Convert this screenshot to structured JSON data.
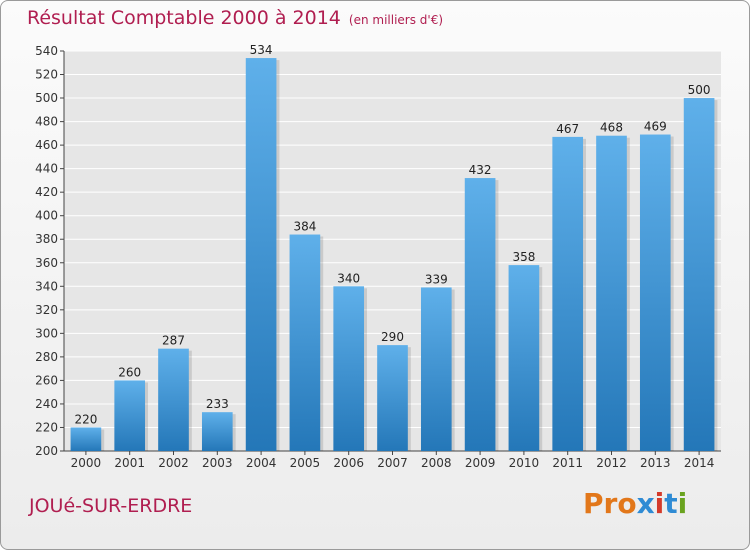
{
  "header": {
    "title": "Résultat Comptable 2000 à 2014",
    "unit": "(en milliers d'€)"
  },
  "footer": {
    "city": "JOUé-SUR-ERDRE",
    "logo_text": "Proxiti",
    "logo_colors": [
      "#e2771a",
      "#e2771a",
      "#e2771a",
      "#2f8bd4",
      "#d43a2a",
      "#2f8bd4",
      "#6aa31f"
    ]
  },
  "colors": {
    "title": "#b01e50",
    "bar_light": "#5fb0ea",
    "bar_dark": "#2477b8",
    "grid": "#ffffff",
    "background_top": "#fbfbfb",
    "background_bottom": "#ececec"
  },
  "chart_data": {
    "type": "bar",
    "title": "Résultat Comptable 2000 à 2014",
    "subtitle": "(en milliers d'€)",
    "xlabel": "",
    "ylabel": "",
    "categories": [
      "2000",
      "2001",
      "2002",
      "2003",
      "2004",
      "2005",
      "2006",
      "2007",
      "2008",
      "2009",
      "2010",
      "2011",
      "2012",
      "2013",
      "2014"
    ],
    "values": [
      220,
      260,
      287,
      233,
      534,
      384,
      340,
      290,
      339,
      432,
      358,
      467,
      468,
      469,
      500
    ],
    "ylim": [
      200,
      540
    ],
    "ytick_step": 20,
    "grid": true,
    "show_data_labels": true
  }
}
